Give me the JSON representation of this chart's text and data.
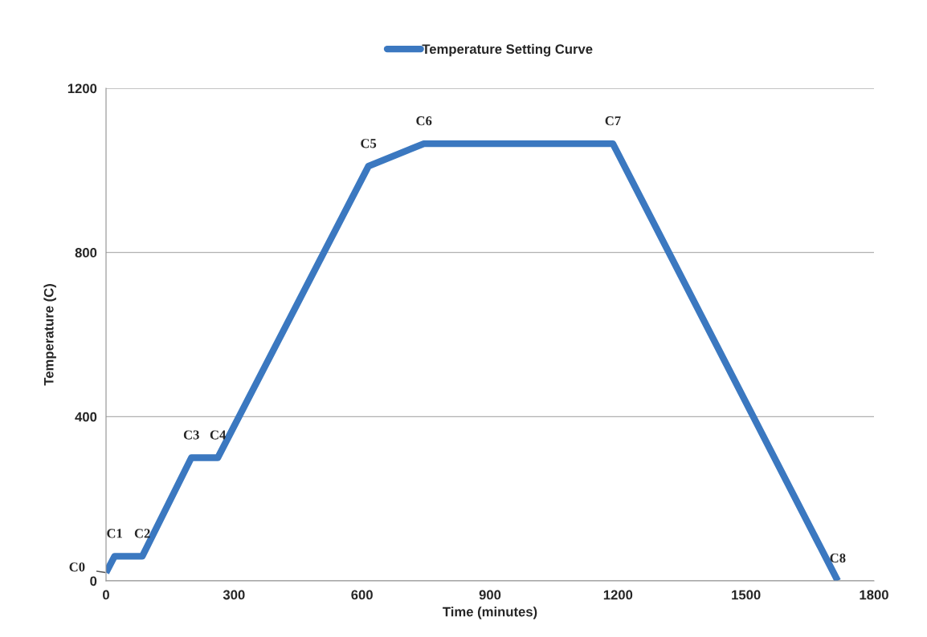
{
  "chart_data": {
    "type": "line",
    "xlabel": "Time (minutes)",
    "ylabel": "Temperature (C)",
    "x": [
      0,
      20,
      85,
      200,
      262,
      615,
      745,
      1188,
      1715
    ],
    "series": [
      {
        "name": "Temperature Setting Curve",
        "color": "#3b78c0",
        "values": [
          20,
          60,
          60,
          300,
          300,
          1010,
          1065,
          1065,
          0
        ]
      }
    ],
    "xlim": [
      0,
      1800
    ],
    "xticks": [
      0,
      300,
      600,
      900,
      1200,
      1500,
      1800
    ],
    "ylim": [
      0,
      1200
    ],
    "yticks": [
      0,
      400,
      800,
      1200
    ],
    "grid": "y",
    "legend": "top",
    "marker": "none",
    "line_style": "solid",
    "annotations": [
      {
        "text": "C0",
        "x": 0,
        "y": 20
      },
      {
        "text": "C1",
        "x": 20,
        "y": 60
      },
      {
        "text": "C2",
        "x": 85,
        "y": 60
      },
      {
        "text": "C3",
        "x": 200,
        "y": 300
      },
      {
        "text": "C4",
        "x": 262,
        "y": 300
      },
      {
        "text": "C5",
        "x": 615,
        "y": 1010
      },
      {
        "text": "C6",
        "x": 745,
        "y": 1065
      },
      {
        "text": "C7",
        "x": 1188,
        "y": 1065
      },
      {
        "text": "C8",
        "x": 1715,
        "y": 0
      }
    ]
  }
}
